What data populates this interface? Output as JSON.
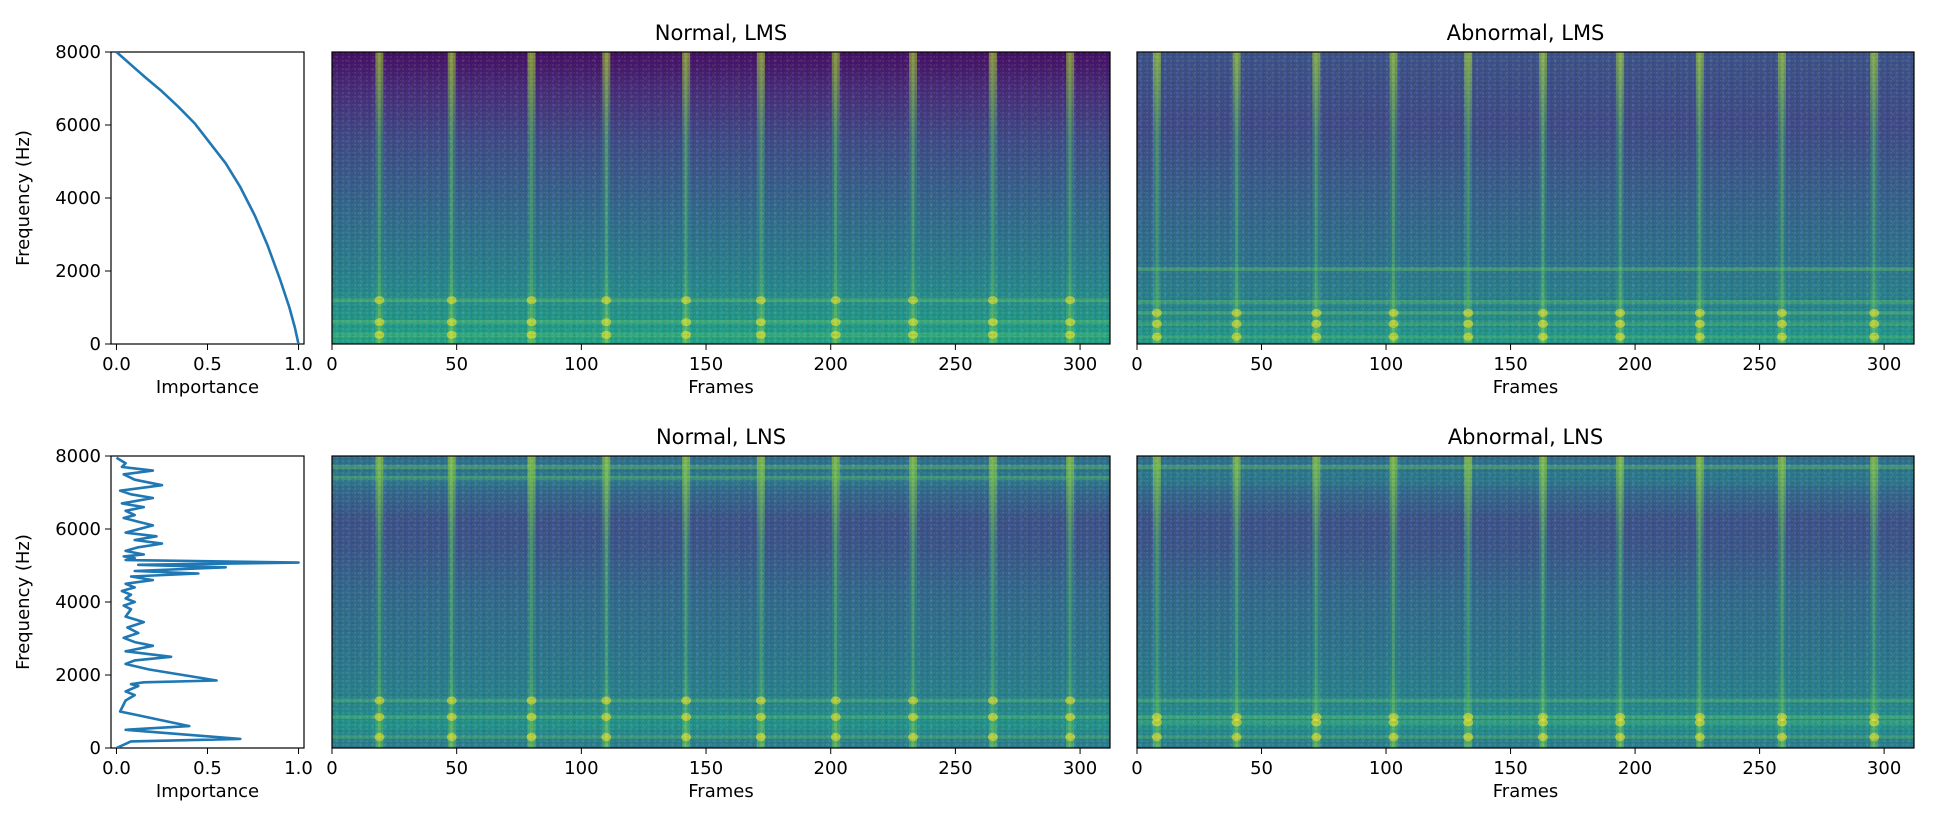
{
  "chart_data": [
    {
      "type": "line",
      "panel": "importance-lms",
      "title": "",
      "xlabel": "Importance",
      "ylabel": "Frequency (Hz)",
      "xlim": [
        -0.03,
        1.03
      ],
      "ylim": [
        0,
        8000
      ],
      "xticks": [
        "0.0",
        "0.5",
        "1.0"
      ],
      "yticks": [
        "0",
        "2000",
        "4000",
        "6000",
        "8000"
      ],
      "series": [
        {
          "color": "#1f77b4",
          "x": [
            0.0,
            0.08,
            0.16,
            0.25,
            0.34,
            0.43,
            0.51,
            0.6,
            0.68,
            0.76,
            0.83,
            0.9,
            0.95,
            0.98,
            1.0
          ],
          "y": [
            8000,
            7650,
            7300,
            6920,
            6500,
            6040,
            5530,
            4950,
            4300,
            3520,
            2700,
            1750,
            1000,
            450,
            0
          ]
        }
      ]
    },
    {
      "type": "heatmap",
      "panel": "normal-lms",
      "title": "Normal, LMS",
      "xlabel": "Frames",
      "ylabel": "",
      "xlim": [
        0,
        312
      ],
      "ylim": [
        0,
        8000
      ],
      "xticks": [
        "0",
        "50",
        "100",
        "150",
        "200",
        "250",
        "300"
      ],
      "colormap": "viridis",
      "event_frames": [
        19,
        48,
        80,
        110,
        142,
        172,
        202,
        233,
        265,
        296
      ],
      "bands_hz": [
        1200,
        600,
        250
      ]
    },
    {
      "type": "heatmap",
      "panel": "abnormal-lms",
      "title": "Abnormal, LMS",
      "xlabel": "Frames",
      "ylabel": "",
      "xlim": [
        0,
        312
      ],
      "ylim": [
        0,
        8000
      ],
      "xticks": [
        "0",
        "50",
        "100",
        "150",
        "200",
        "250",
        "300"
      ],
      "colormap": "viridis",
      "event_frames": [
        8,
        40,
        72,
        103,
        133,
        163,
        194,
        226,
        259,
        296
      ],
      "bands_hz": [
        2050,
        1150,
        850,
        550,
        200
      ]
    },
    {
      "type": "line",
      "panel": "importance-lns",
      "title": "",
      "xlabel": "Importance",
      "ylabel": "Frequency (Hz)",
      "xlim": [
        -0.03,
        1.03
      ],
      "ylim": [
        0,
        8000
      ],
      "xticks": [
        "0.0",
        "0.5",
        "1.0"
      ],
      "yticks": [
        "0",
        "2000",
        "4000",
        "6000",
        "8000"
      ],
      "series": [
        {
          "color": "#1f77b4",
          "x": [
            0.0,
            0.05,
            0.03,
            0.2,
            0.04,
            0.1,
            0.25,
            0.02,
            0.08,
            0.2,
            0.03,
            0.15,
            0.05,
            0.1,
            0.04,
            0.12,
            0.2,
            0.05,
            0.22,
            0.1,
            0.25,
            0.12,
            0.05,
            0.15,
            0.04,
            0.1,
            0.05,
            1.0,
            0.12,
            0.6,
            0.1,
            0.45,
            0.08,
            0.2,
            0.05,
            0.1,
            0.03,
            0.08,
            0.05,
            0.1,
            0.04,
            0.08,
            0.05,
            0.15,
            0.06,
            0.12,
            0.04,
            0.1,
            0.2,
            0.05,
            0.3,
            0.1,
            0.05,
            0.18,
            0.55,
            0.15,
            0.08,
            0.12,
            0.05,
            0.1,
            0.05,
            0.02,
            0.4,
            0.05,
            0.68,
            0.08,
            0.0
          ],
          "y": [
            7950,
            7800,
            7700,
            7600,
            7500,
            7350,
            7200,
            7050,
            6950,
            6850,
            6700,
            6600,
            6500,
            6380,
            6300,
            6200,
            6100,
            5900,
            5800,
            5700,
            5600,
            5500,
            5400,
            5300,
            5250,
            5200,
            5150,
            5080,
            5020,
            4950,
            4850,
            4780,
            4700,
            4600,
            4500,
            4400,
            4300,
            4200,
            4100,
            4000,
            3900,
            3800,
            3600,
            3450,
            3300,
            3150,
            3020,
            2900,
            2800,
            2650,
            2500,
            2400,
            2300,
            2150,
            1850,
            1800,
            1750,
            1700,
            1550,
            1450,
            1300,
            1000,
            600,
            500,
            250,
            180,
            0
          ]
        }
      ]
    },
    {
      "type": "heatmap",
      "panel": "normal-lns",
      "title": "Normal, LNS",
      "xlabel": "Frames",
      "ylabel": "",
      "xlim": [
        0,
        312
      ],
      "ylim": [
        0,
        8000
      ],
      "xticks": [
        "0",
        "50",
        "100",
        "150",
        "200",
        "250",
        "300"
      ],
      "colormap": "viridis",
      "event_frames": [
        19,
        48,
        80,
        110,
        142,
        172,
        202,
        233,
        265,
        296
      ],
      "bands_hz": [
        7700,
        7400,
        1300,
        850,
        300
      ]
    },
    {
      "type": "heatmap",
      "panel": "abnormal-lns",
      "title": "Abnormal, LNS",
      "xlabel": "Frames",
      "ylabel": "",
      "xlim": [
        0,
        312
      ],
      "ylim": [
        0,
        8000
      ],
      "xticks": [
        "0",
        "50",
        "100",
        "150",
        "200",
        "250",
        "300"
      ],
      "colormap": "viridis",
      "event_frames": [
        8,
        40,
        72,
        103,
        133,
        163,
        194,
        226,
        259,
        296
      ],
      "bands_hz": [
        7700,
        1300,
        850,
        700,
        300
      ]
    }
  ]
}
